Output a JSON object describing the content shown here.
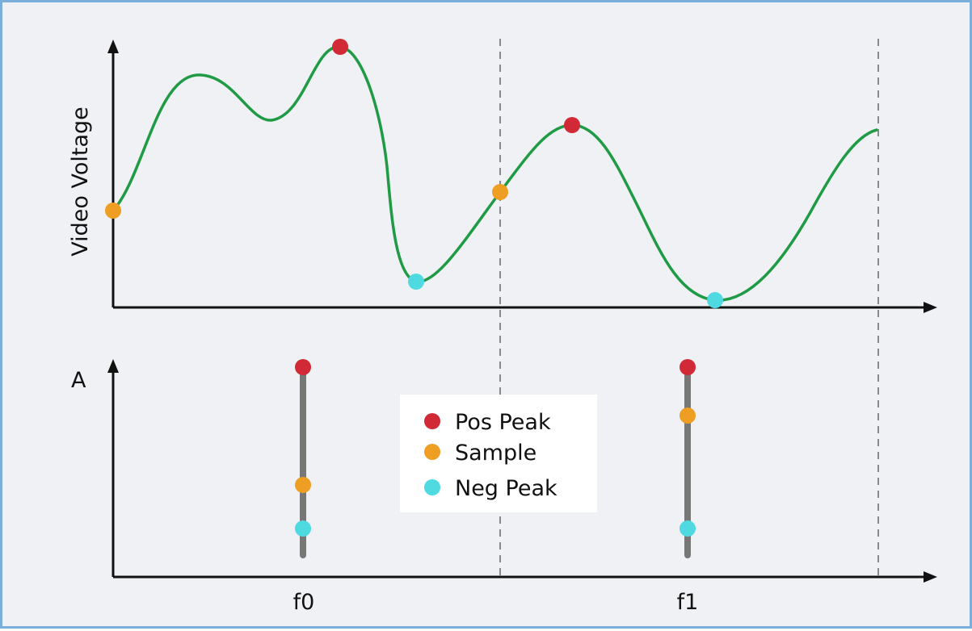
{
  "diagram": {
    "y_label_top": "Video Voltage",
    "y_label_bottom": "A",
    "freq_labels": [
      "f0",
      "f1"
    ],
    "legend": [
      {
        "label": "Pos Peak",
        "color": "#d12a36"
      },
      {
        "label": "Sample",
        "color": "#ee9e22"
      },
      {
        "label": "Neg Peak",
        "color": "#4fd9e0"
      }
    ],
    "curve_color": "#1f9a45",
    "stem_color": "#777777"
  }
}
